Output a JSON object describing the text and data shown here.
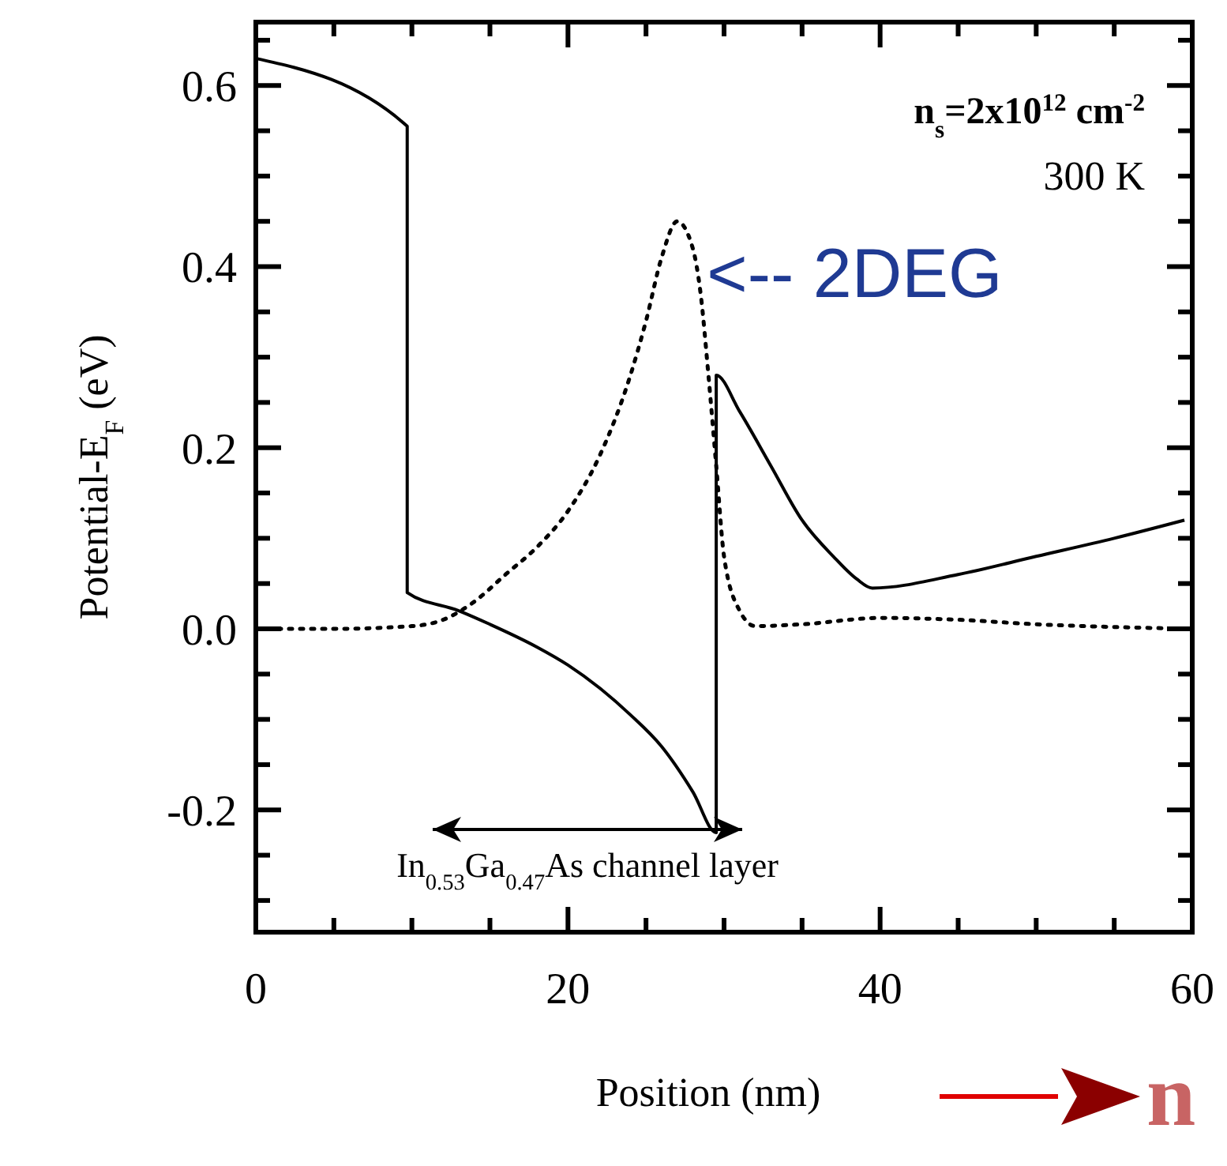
{
  "chart_data": {
    "type": "line",
    "xlabel": "Position (nm)",
    "ylabel": "Potential-E$_{F}$ (eV)",
    "xlim": [
      0,
      60
    ],
    "ylim": [
      -0.335,
      0.67
    ],
    "xticks": [
      0,
      {
        "value": 5,
        "label": null
      },
      {
        "value": 10,
        "label": null
      },
      {
        "value": 15,
        "label": null
      },
      20,
      {
        "value": 25,
        "label": null
      },
      {
        "value": 30,
        "label": null
      },
      {
        "value": 35,
        "label": null
      },
      40,
      {
        "value": 45,
        "label": null
      },
      {
        "value": 50,
        "label": null
      },
      {
        "value": 55,
        "label": null
      },
      60
    ],
    "yticks": [
      {
        "value": -0.3,
        "label": null
      },
      {
        "value": -0.25,
        "label": null
      },
      -0.2,
      {
        "value": -0.15,
        "label": null
      },
      {
        "value": -0.1,
        "label": null
      },
      {
        "value": -0.05,
        "label": null
      },
      {
        "value": 0,
        "label": "0.0"
      },
      {
        "value": 0.05,
        "label": null
      },
      {
        "value": 0.1,
        "label": null
      },
      {
        "value": 0.15,
        "label": null
      },
      0.2,
      {
        "value": 0.25,
        "label": null
      },
      {
        "value": 0.3,
        "label": null
      },
      {
        "value": 0.35,
        "label": null
      },
      0.4,
      {
        "value": 0.45,
        "label": null
      },
      {
        "value": 0.5,
        "label": null
      },
      {
        "value": 0.55,
        "label": null
      },
      0.6,
      {
        "value": 0.65,
        "label": null
      }
    ],
    "grid": false,
    "series": [
      {
        "color": "#000000",
        "line_style": "solid",
        "x": [
          0,
          9.7,
          9.7,
          13,
          15,
          18,
          20,
          22,
          24,
          26,
          28,
          29.5,
          29.5,
          31,
          33,
          35,
          37,
          38.5,
          39.5,
          45,
          50,
          55,
          59.5
        ],
        "values": [
          0.63,
          0.555,
          0.04,
          0.02,
          0.005,
          -0.02,
          -0.04,
          -0.065,
          -0.095,
          -0.13,
          -0.18,
          -0.225,
          0.28,
          0.24,
          0.18,
          0.12,
          0.08,
          0.055,
          0.045,
          0.06,
          0.08,
          0.1,
          0.12
        ]
      },
      {
        "color": "#000000",
        "line_style": "dotted",
        "x": [
          0,
          5,
          10,
          12,
          14,
          16,
          18,
          20,
          22,
          24,
          25,
          26,
          27,
          28,
          28.5,
          29,
          29.5,
          30,
          31,
          32,
          35,
          40,
          45,
          50,
          55,
          60
        ],
        "values": [
          0,
          0,
          0.003,
          0.01,
          0.03,
          0.06,
          0.09,
          0.13,
          0.19,
          0.28,
          0.34,
          0.41,
          0.45,
          0.42,
          0.37,
          0.28,
          0.18,
          0.08,
          0.02,
          0.003,
          0.005,
          0.012,
          0.01,
          0.005,
          0.002,
          0
        ]
      }
    ],
    "annotations": [
      "n$_{s}$=2x10$^{12}$ cm$^{-2}$",
      "300 K",
      {
        "text": "<-- 2DEG",
        "x": 28.5,
        "y": 0.37
      },
      "In$_{0.53}$Ga$_{0.47}$As channel layer",
      "n"
    ]
  }
}
